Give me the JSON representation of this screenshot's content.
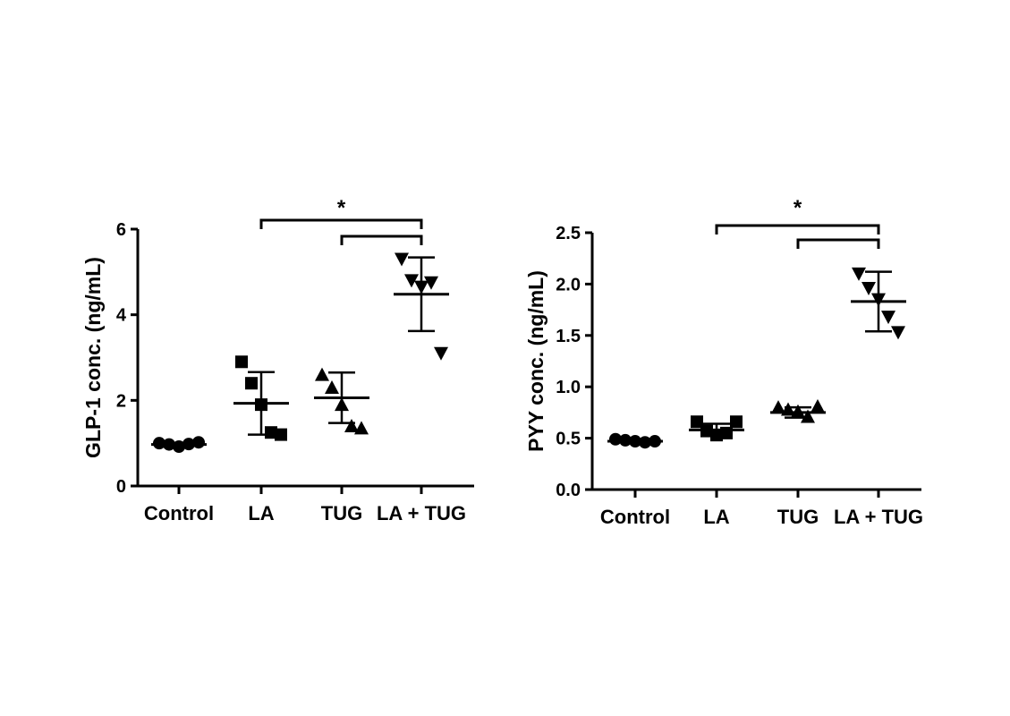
{
  "chart_data": [
    {
      "type": "scatter",
      "ylabel": "GLP-1 conc. (ng/mL)",
      "ylim": [
        0,
        6
      ],
      "yticks": [
        0,
        2,
        4,
        6
      ],
      "categories": [
        "Control",
        "LA",
        "TUG",
        "LA + TUG"
      ],
      "markers": [
        "circle",
        "square",
        "triangle-up",
        "triangle-down"
      ],
      "groups": [
        {
          "points": [
            1.0,
            0.97,
            0.92,
            0.98,
            1.02
          ],
          "mean": 0.97,
          "sd_low": 0.95,
          "sd_high": 1.0
        },
        {
          "points": [
            2.9,
            2.4,
            1.9,
            1.25,
            1.2
          ],
          "mean": 1.93,
          "sd_low": 1.2,
          "sd_high": 2.66
        },
        {
          "points": [
            2.6,
            2.3,
            1.9,
            1.4,
            1.35
          ],
          "mean": 2.06,
          "sd_low": 1.47,
          "sd_high": 2.65
        },
        {
          "points": [
            5.3,
            4.8,
            4.65,
            4.75,
            3.1
          ],
          "mean": 4.48,
          "sd_low": 3.62,
          "sd_high": 5.34
        }
      ],
      "significance": [
        {
          "from": "LA",
          "to": "LA + TUG",
          "label": "*"
        },
        {
          "from": "TUG",
          "to": "LA + TUG",
          "label": ""
        }
      ]
    },
    {
      "type": "scatter",
      "ylabel": "PYY conc. (ng/mL)",
      "ylim": [
        0,
        2.5
      ],
      "yticks": [
        "0.0",
        "0.5",
        "1.0",
        "1.5",
        "2.0",
        "2.5"
      ],
      "categories": [
        "Control",
        "LA",
        "TUG",
        "LA + TUG"
      ],
      "markers": [
        "circle",
        "square",
        "triangle-up",
        "triangle-down"
      ],
      "groups": [
        {
          "points": [
            0.49,
            0.48,
            0.47,
            0.46,
            0.47
          ],
          "mean": 0.47,
          "sd_low": 0.46,
          "sd_high": 0.49
        },
        {
          "points": [
            0.66,
            0.57,
            0.53,
            0.55,
            0.66
          ],
          "mean": 0.58,
          "sd_low": 0.52,
          "sd_high": 0.64
        },
        {
          "points": [
            0.8,
            0.78,
            0.76,
            0.71,
            0.81
          ],
          "mean": 0.75,
          "sd_low": 0.7,
          "sd_high": 0.8
        },
        {
          "points": [
            2.1,
            1.96,
            1.85,
            1.68,
            1.53
          ],
          "mean": 1.83,
          "sd_low": 1.54,
          "sd_high": 2.12
        }
      ],
      "significance": [
        {
          "from": "LA",
          "to": "LA + TUG",
          "label": "*"
        },
        {
          "from": "TUG",
          "to": "LA + TUG",
          "label": ""
        }
      ]
    }
  ]
}
